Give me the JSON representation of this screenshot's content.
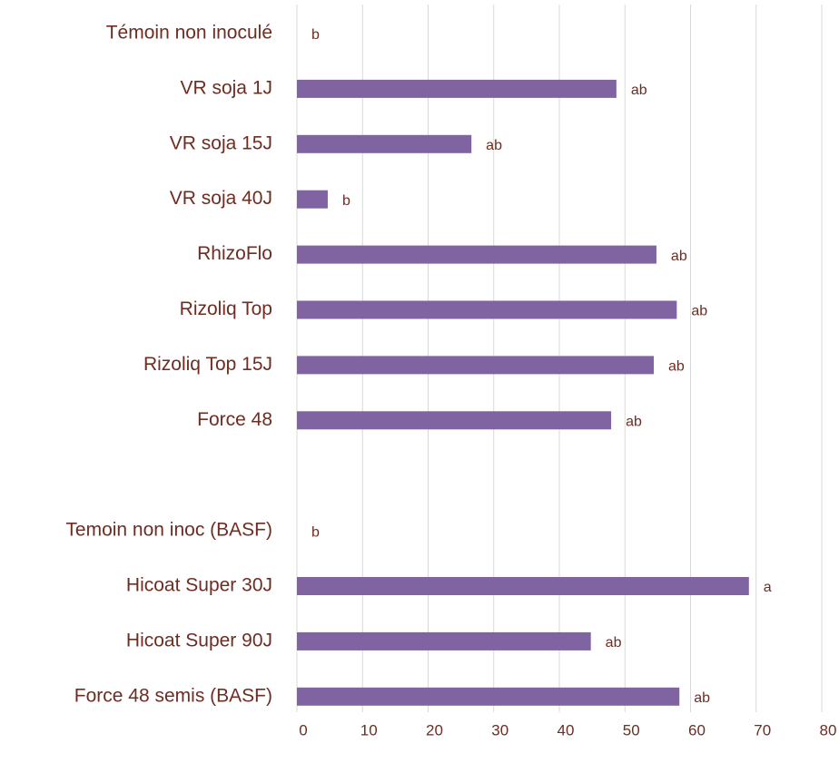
{
  "chart_data": {
    "type": "bar",
    "orientation": "horizontal",
    "categories": [
      "Témoin non inoculé",
      "VR soja 1J",
      "VR soja 15J",
      "VR soja 40J",
      "RhizoFlo",
      "Rizoliq Top",
      "Rizoliq Top 15J",
      "Force 48",
      null,
      "Temoin non inoc (BASF)",
      "Hicoat Super 30J",
      "Hicoat Super 90J",
      "Force 48 semis (BASF)"
    ],
    "values": [
      0,
      48.7,
      26.6,
      4.7,
      54.8,
      57.9,
      54.4,
      47.9,
      null,
      0,
      68.9,
      44.8,
      58.3
    ],
    "value_labels": [
      "b",
      "ab",
      "ab",
      "b",
      "ab",
      "ab",
      "ab",
      "ab",
      null,
      "b",
      "a",
      "ab",
      "ab"
    ],
    "color": "#8064a2",
    "xlim": [
      0,
      80
    ],
    "xticks": [
      0,
      10,
      20,
      30,
      40,
      50,
      60,
      70,
      80
    ],
    "grid": true
  }
}
